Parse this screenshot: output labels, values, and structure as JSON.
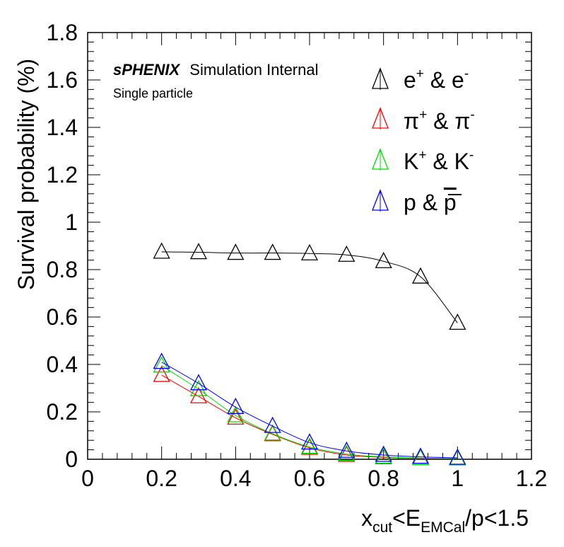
{
  "chart_data": {
    "type": "line",
    "xlim": [
      0,
      1.2
    ],
    "ylim": [
      0,
      1.8
    ],
    "x_ticks": [
      "0",
      "0.2",
      "0.4",
      "0.6",
      "0.8",
      "1",
      "1.2"
    ],
    "y_ticks": [
      "0",
      "0.2",
      "0.4",
      "0.6",
      "0.8",
      "1",
      "1.2",
      "1.4",
      "1.6",
      "1.8"
    ],
    "xlabel": "x_cut<E_EMCal/p<1.5",
    "ylabel": "Survival probability (%)",
    "annotation": {
      "brand": "sPHENIX",
      "rest": "Simulation Internal",
      "subtitle": "Single particle"
    },
    "legend_position": "top-right",
    "marker": "open-triangle",
    "grid": false,
    "x": [
      0.2,
      0.3,
      0.4,
      0.5,
      0.6,
      0.7,
      0.8,
      0.9,
      1.0
    ],
    "series": [
      {
        "name": "e+ & e-",
        "color": "#000000",
        "values": [
          0.875,
          0.873,
          0.87,
          0.87,
          0.868,
          0.862,
          0.835,
          0.77,
          0.575
        ]
      },
      {
        "name": "π+ & π-",
        "color": "#ff0000",
        "values": [
          0.355,
          0.265,
          0.175,
          0.105,
          0.048,
          0.018,
          0.008,
          0.004,
          0.003
        ]
      },
      {
        "name": "K+ & K-",
        "color": "#00dd00",
        "values": [
          0.395,
          0.295,
          0.185,
          0.108,
          0.052,
          0.022,
          0.01,
          0.005,
          0.003
        ]
      },
      {
        "name": "p & p̄",
        "color": "#0000ff",
        "values": [
          0.41,
          0.32,
          0.22,
          0.14,
          0.07,
          0.035,
          0.018,
          0.01,
          0.006
        ]
      }
    ]
  }
}
